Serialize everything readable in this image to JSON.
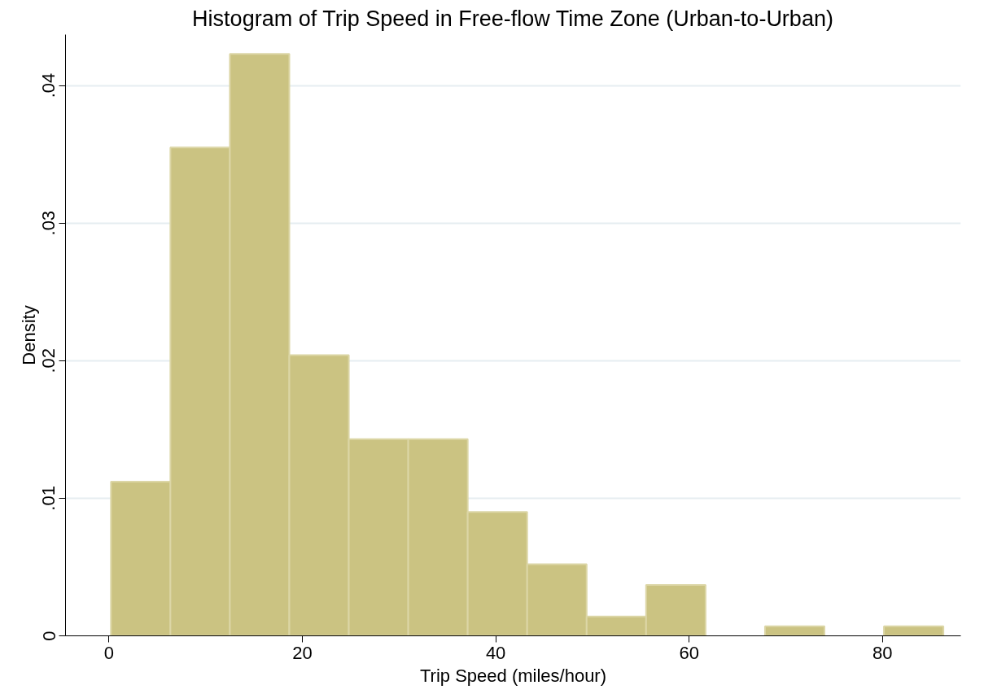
{
  "chart_data": {
    "type": "histogram",
    "title": "Histogram of Trip Speed in Free-flow Time Zone (Urban-to-Urban)",
    "xlabel": "Trip Speed (miles/hour)",
    "ylabel": "Density",
    "bins": [
      0.2,
      6.35,
      12.5,
      18.65,
      24.8,
      30.95,
      37.1,
      43.25,
      49.4,
      55.55,
      61.7,
      67.85,
      74.0,
      80.15,
      86.3
    ],
    "values": [
      0.0112,
      0.0355,
      0.0423,
      0.0204,
      0.0143,
      0.0143,
      0.009,
      0.0052,
      0.0014,
      0.0037,
      0,
      0.0007,
      0,
      0.0007
    ],
    "color": "#cbc382",
    "xlim": [
      -4.5,
      88.1
    ],
    "xticks": [
      0,
      20,
      40,
      60,
      80
    ],
    "ylim": [
      0,
      0.0437
    ],
    "yticks": [
      {
        "value": 0,
        "label": "0"
      },
      {
        "value": 0.01,
        "label": ".01"
      },
      {
        "value": 0.02,
        "label": ".02"
      },
      {
        "value": 0.03,
        "label": ".03"
      },
      {
        "value": 0.04,
        "label": ".04"
      }
    ],
    "grid": "y"
  }
}
